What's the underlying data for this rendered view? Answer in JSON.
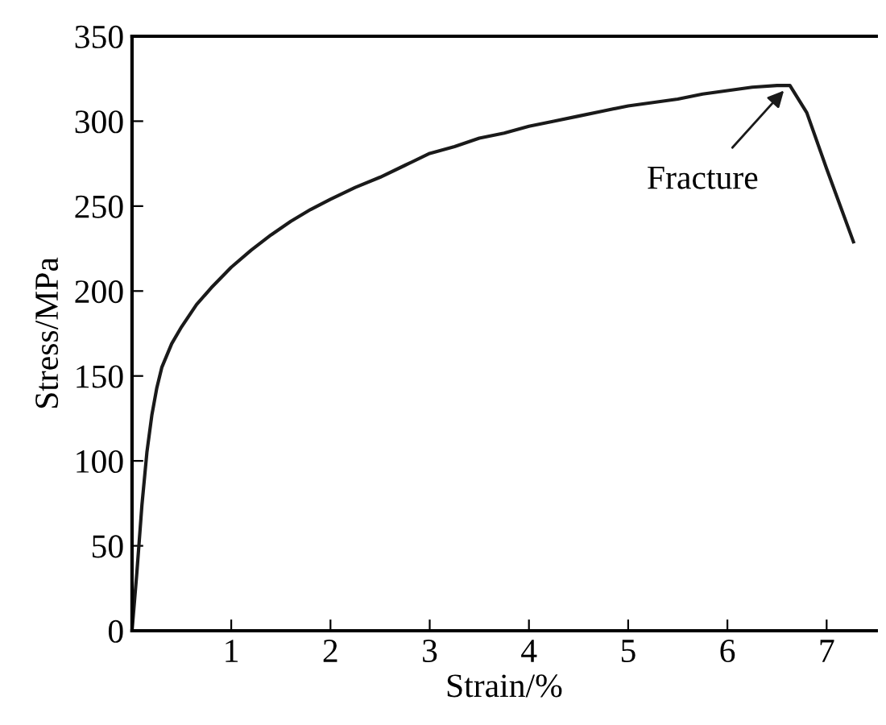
{
  "chart_data": {
    "type": "line",
    "xlabel": "Strain/%",
    "ylabel": "Stress/MPa",
    "xlim": [
      0,
      7.5
    ],
    "xticks": [
      {
        "value": 0,
        "label": null
      },
      1,
      2,
      3,
      4,
      5,
      6,
      7
    ],
    "ylim": [
      0,
      350
    ],
    "yticks": [
      0,
      50,
      100,
      150,
      200,
      250,
      300,
      350
    ],
    "grid": false,
    "marker": "none",
    "line_style": "solid",
    "series": [
      {
        "color": "#1a1a1a",
        "x": [
          0,
          0.05,
          0.1,
          0.15,
          0.2,
          0.25,
          0.3,
          0.4,
          0.5,
          0.65,
          0.8,
          1.0,
          1.2,
          1.4,
          1.6,
          1.8,
          2.0,
          2.25,
          2.5,
          2.75,
          3.0,
          3.25,
          3.5,
          3.75,
          4.0,
          4.25,
          4.5,
          4.75,
          5.0,
          5.25,
          5.5,
          5.75,
          6.0,
          6.25,
          6.5,
          6.63,
          6.8,
          7.0,
          7.27
        ],
        "values": [
          0,
          35,
          74,
          105,
          127,
          143,
          155,
          169,
          179,
          192,
          202,
          214,
          224,
          233,
          241,
          248,
          254,
          261,
          267,
          274,
          281,
          285,
          290,
          293,
          297,
          300,
          303,
          306,
          309,
          311,
          313,
          316,
          318,
          320,
          321,
          321,
          305,
          272,
          229
        ]
      }
    ],
    "annotations": [
      {
        "text": "Fracture",
        "x": 6.6,
        "y": 320
      }
    ]
  }
}
